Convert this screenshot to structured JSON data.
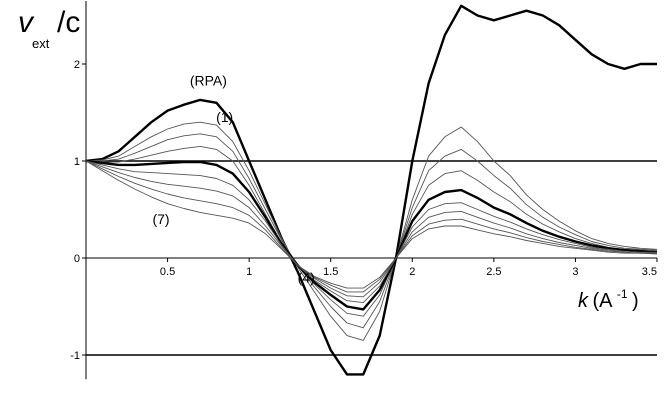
{
  "chart_data": {
    "type": "line",
    "ylabel": {
      "main": "v",
      "sub": "ext",
      "rest": "/c"
    },
    "xlabel": {
      "main": "k(A",
      "sup": "-1",
      "close": ")"
    },
    "xlim": [
      0,
      3.5
    ],
    "ylim": [
      -1.25,
      2.65
    ],
    "x_ticks": [
      {
        "value": 0.5,
        "label": "0.5"
      },
      {
        "value": 1,
        "label": "1"
      },
      {
        "value": 1.5,
        "label": "1.5"
      },
      {
        "value": 2,
        "label": "2"
      },
      {
        "value": 2.5,
        "label": "2.5"
      },
      {
        "value": 3,
        "label": "3"
      },
      {
        "value": 3.5,
        "label": "3.5"
      }
    ],
    "y_ticks": [
      {
        "value": 2,
        "label": "2"
      },
      {
        "value": 1,
        "label": "1"
      },
      {
        "value": 0,
        "label": "0"
      },
      {
        "value": -1,
        "label": "-1"
      }
    ],
    "reference_lines": [
      1,
      -1
    ],
    "annotations": [
      {
        "text": "(RPA)",
        "x": 0.75,
        "y": 1.78
      },
      {
        "text": "(1)",
        "x": 0.85,
        "y": 1.4
      },
      {
        "text": "(7)",
        "x": 0.46,
        "y": 0.35
      },
      {
        "text": "(4)",
        "x": 1.35,
        "y": -0.25
      }
    ],
    "series": [
      {
        "bold": true,
        "x": [
          0,
          0.1,
          0.2,
          0.3,
          0.4,
          0.5,
          0.6,
          0.7,
          0.8,
          0.9,
          1.0,
          1.1,
          1.2,
          1.3,
          1.4,
          1.5,
          1.6,
          1.7,
          1.8,
          1.9,
          2.0,
          2.1,
          2.2,
          2.3,
          2.4,
          2.5,
          2.6,
          2.7,
          2.8,
          2.9,
          3.0,
          3.1,
          3.2,
          3.3,
          3.4,
          3.5
        ],
        "y": [
          1.0,
          1.02,
          1.1,
          1.25,
          1.4,
          1.52,
          1.58,
          1.63,
          1.6,
          1.4,
          1.0,
          0.6,
          0.2,
          -0.15,
          -0.55,
          -0.95,
          -1.2,
          -1.2,
          -0.8,
          0.0,
          1.0,
          1.8,
          2.3,
          2.6,
          2.5,
          2.45,
          2.5,
          2.55,
          2.5,
          2.4,
          2.25,
          2.1,
          2.0,
          1.95,
          2.0,
          2.0
        ]
      },
      {
        "bold": false,
        "x": [
          0,
          0.1,
          0.2,
          0.3,
          0.4,
          0.5,
          0.6,
          0.7,
          0.8,
          0.9,
          1.0,
          1.1,
          1.2,
          1.3,
          1.4,
          1.5,
          1.6,
          1.7,
          1.8,
          1.9,
          2.0,
          2.1,
          2.2,
          2.3,
          2.4,
          2.5,
          2.6,
          2.7,
          2.8,
          2.9,
          3.0,
          3.1,
          3.2,
          3.3,
          3.4,
          3.5
        ],
        "y": [
          1.0,
          1.01,
          1.05,
          1.15,
          1.25,
          1.33,
          1.38,
          1.4,
          1.37,
          1.2,
          0.9,
          0.55,
          0.2,
          -0.1,
          -0.35,
          -0.6,
          -0.8,
          -0.85,
          -0.55,
          0.0,
          0.6,
          1.05,
          1.25,
          1.35,
          1.2,
          1.0,
          0.85,
          0.65,
          0.5,
          0.38,
          0.28,
          0.2,
          0.15,
          0.12,
          0.1,
          0.09
        ]
      },
      {
        "bold": false,
        "x": [
          0,
          0.1,
          0.2,
          0.3,
          0.4,
          0.5,
          0.6,
          0.7,
          0.8,
          0.9,
          1.0,
          1.1,
          1.2,
          1.3,
          1.4,
          1.5,
          1.6,
          1.7,
          1.8,
          1.9,
          2.0,
          2.1,
          2.2,
          2.3,
          2.4,
          2.5,
          2.6,
          2.7,
          2.8,
          2.9,
          3.0,
          3.1,
          3.2,
          3.3,
          3.4,
          3.5
        ],
        "y": [
          1.0,
          1.0,
          1.02,
          1.08,
          1.15,
          1.22,
          1.26,
          1.28,
          1.25,
          1.1,
          0.82,
          0.5,
          0.18,
          -0.08,
          -0.3,
          -0.5,
          -0.67,
          -0.72,
          -0.45,
          0.0,
          0.52,
          0.9,
          1.05,
          1.12,
          1.0,
          0.85,
          0.72,
          0.55,
          0.42,
          0.32,
          0.24,
          0.17,
          0.13,
          0.1,
          0.09,
          0.08
        ]
      },
      {
        "bold": false,
        "x": [
          0,
          0.1,
          0.2,
          0.3,
          0.4,
          0.5,
          0.6,
          0.7,
          0.8,
          0.9,
          1.0,
          1.1,
          1.2,
          1.3,
          1.4,
          1.5,
          1.6,
          1.7,
          1.8,
          1.9,
          2.0,
          2.1,
          2.2,
          2.3,
          2.4,
          2.5,
          2.6,
          2.7,
          2.8,
          2.9,
          3.0,
          3.1,
          3.2,
          3.3,
          3.4,
          3.5
        ],
        "y": [
          1.0,
          0.99,
          0.99,
          1.02,
          1.06,
          1.1,
          1.13,
          1.15,
          1.12,
          1.0,
          0.75,
          0.45,
          0.15,
          -0.08,
          -0.27,
          -0.43,
          -0.57,
          -0.6,
          -0.38,
          0.0,
          0.45,
          0.75,
          0.87,
          0.9,
          0.8,
          0.68,
          0.58,
          0.45,
          0.35,
          0.27,
          0.2,
          0.15,
          0.11,
          0.09,
          0.08,
          0.07
        ]
      },
      {
        "bold": true,
        "x": [
          0,
          0.1,
          0.2,
          0.3,
          0.4,
          0.5,
          0.6,
          0.7,
          0.8,
          0.9,
          1.0,
          1.1,
          1.2,
          1.3,
          1.4,
          1.5,
          1.6,
          1.7,
          1.8,
          1.9,
          2.0,
          2.1,
          2.2,
          2.3,
          2.4,
          2.5,
          2.6,
          2.7,
          2.8,
          2.9,
          3.0,
          3.1,
          3.2,
          3.3,
          3.4,
          3.5
        ],
        "y": [
          1.0,
          0.98,
          0.96,
          0.96,
          0.97,
          0.98,
          0.99,
          0.99,
          0.96,
          0.87,
          0.68,
          0.42,
          0.14,
          -0.08,
          -0.25,
          -0.38,
          -0.5,
          -0.53,
          -0.33,
          0.0,
          0.38,
          0.6,
          0.68,
          0.7,
          0.62,
          0.52,
          0.45,
          0.36,
          0.28,
          0.22,
          0.17,
          0.13,
          0.1,
          0.08,
          0.07,
          0.06
        ]
      },
      {
        "bold": false,
        "x": [
          0,
          0.1,
          0.2,
          0.3,
          0.4,
          0.5,
          0.6,
          0.7,
          0.8,
          0.9,
          1.0,
          1.1,
          1.2,
          1.3,
          1.4,
          1.5,
          1.6,
          1.7,
          1.8,
          1.9,
          2.0,
          2.1,
          2.2,
          2.3,
          2.4,
          2.5,
          2.6,
          2.7,
          2.8,
          2.9,
          3.0,
          3.1,
          3.2,
          3.3,
          3.4,
          3.5
        ],
        "y": [
          1.0,
          0.96,
          0.92,
          0.89,
          0.88,
          0.87,
          0.86,
          0.85,
          0.82,
          0.75,
          0.6,
          0.38,
          0.13,
          -0.08,
          -0.23,
          -0.34,
          -0.44,
          -0.46,
          -0.29,
          0.0,
          0.32,
          0.5,
          0.56,
          0.57,
          0.5,
          0.43,
          0.37,
          0.3,
          0.24,
          0.19,
          0.15,
          0.11,
          0.09,
          0.07,
          0.06,
          0.06
        ]
      },
      {
        "bold": false,
        "x": [
          0,
          0.1,
          0.2,
          0.3,
          0.4,
          0.5,
          0.6,
          0.7,
          0.8,
          0.9,
          1.0,
          1.1,
          1.2,
          1.3,
          1.4,
          1.5,
          1.6,
          1.7,
          1.8,
          1.9,
          2.0,
          2.1,
          2.2,
          2.3,
          2.4,
          2.5,
          2.6,
          2.7,
          2.8,
          2.9,
          3.0,
          3.1,
          3.2,
          3.3,
          3.4,
          3.5
        ],
        "y": [
          1.0,
          0.94,
          0.88,
          0.83,
          0.79,
          0.76,
          0.74,
          0.72,
          0.69,
          0.64,
          0.52,
          0.33,
          0.12,
          -0.08,
          -0.21,
          -0.31,
          -0.39,
          -0.4,
          -0.25,
          0.0,
          0.27,
          0.42,
          0.47,
          0.48,
          0.42,
          0.36,
          0.31,
          0.25,
          0.2,
          0.16,
          0.13,
          0.1,
          0.08,
          0.06,
          0.05,
          0.05
        ]
      },
      {
        "bold": false,
        "x": [
          0,
          0.1,
          0.2,
          0.3,
          0.4,
          0.5,
          0.6,
          0.7,
          0.8,
          0.9,
          1.0,
          1.1,
          1.2,
          1.3,
          1.4,
          1.5,
          1.6,
          1.7,
          1.8,
          1.9,
          2.0,
          2.1,
          2.2,
          2.3,
          2.4,
          2.5,
          2.6,
          2.7,
          2.8,
          2.9,
          3.0,
          3.1,
          3.2,
          3.3,
          3.4,
          3.5
        ],
        "y": [
          1.0,
          0.92,
          0.84,
          0.77,
          0.71,
          0.66,
          0.62,
          0.59,
          0.56,
          0.52,
          0.44,
          0.29,
          0.1,
          -0.08,
          -0.2,
          -0.28,
          -0.35,
          -0.35,
          -0.22,
          0.0,
          0.23,
          0.35,
          0.39,
          0.4,
          0.35,
          0.3,
          0.26,
          0.21,
          0.17,
          0.14,
          0.11,
          0.09,
          0.07,
          0.06,
          0.05,
          0.05
        ]
      },
      {
        "bold": false,
        "x": [
          0,
          0.1,
          0.2,
          0.3,
          0.4,
          0.5,
          0.6,
          0.7,
          0.8,
          0.9,
          1.0,
          1.1,
          1.2,
          1.3,
          1.4,
          1.5,
          1.6,
          1.7,
          1.8,
          1.9,
          2.0,
          2.1,
          2.2,
          2.3,
          2.4,
          2.5,
          2.6,
          2.7,
          2.8,
          2.9,
          3.0,
          3.1,
          3.2,
          3.3,
          3.4,
          3.5
        ],
        "y": [
          1.0,
          0.9,
          0.8,
          0.71,
          0.63,
          0.56,
          0.51,
          0.47,
          0.44,
          0.41,
          0.36,
          0.25,
          0.09,
          -0.08,
          -0.19,
          -0.26,
          -0.31,
          -0.31,
          -0.2,
          0.0,
          0.2,
          0.3,
          0.33,
          0.33,
          0.29,
          0.25,
          0.22,
          0.18,
          0.15,
          0.12,
          0.1,
          0.08,
          0.06,
          0.05,
          0.05,
          0.04
        ]
      }
    ]
  }
}
